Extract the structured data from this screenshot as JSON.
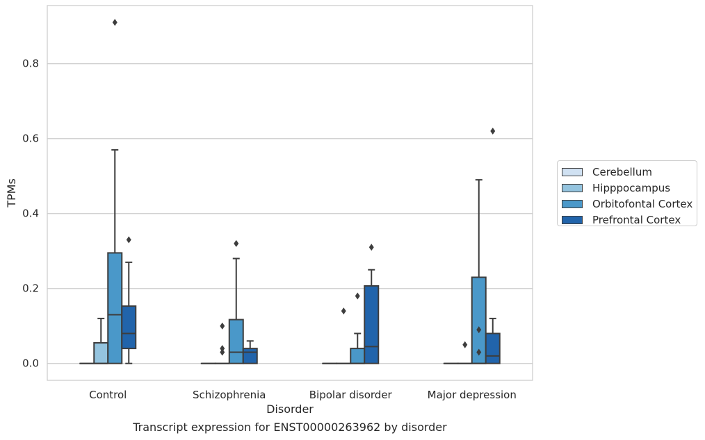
{
  "chart_data": {
    "type": "box",
    "title": "",
    "caption": "Transcript expression for ENST00000263962 by disorder",
    "xlabel": "Disorder",
    "ylabel": "TPMs",
    "ylim": [
      -0.045,
      0.955
    ],
    "yticks": [
      "0.0",
      "0.2",
      "0.4",
      "0.6",
      "0.8"
    ],
    "grid": "horizontal",
    "legend_position": "right",
    "categories": [
      "Control",
      "Schizophrenia",
      "Bipolar disorder",
      "Major depression"
    ],
    "series": [
      {
        "name": "Cerebellum",
        "color": "#d0e1f2",
        "boxes": [
          {
            "min": 0,
            "q1": 0,
            "median": 0,
            "q3": 0,
            "max": 0,
            "outliers": []
          },
          {
            "min": 0,
            "q1": 0,
            "median": 0,
            "q3": 0,
            "max": 0,
            "outliers": []
          },
          {
            "min": 0,
            "q1": 0,
            "median": 0,
            "q3": 0,
            "max": 0,
            "outliers": []
          },
          {
            "min": 0,
            "q1": 0,
            "median": 0,
            "q3": 0,
            "max": 0,
            "outliers": []
          }
        ]
      },
      {
        "name": "Hipppocampus",
        "color": "#94c4df",
        "boxes": [
          {
            "min": 0,
            "q1": 0,
            "median": 0,
            "q3": 0.055,
            "max": 0.12,
            "outliers": []
          },
          {
            "min": 0,
            "q1": 0,
            "median": 0,
            "q3": 0,
            "max": 0,
            "outliers": [
              0.1,
              0.04,
              0.03
            ]
          },
          {
            "min": 0,
            "q1": 0,
            "median": 0,
            "q3": 0,
            "max": 0,
            "outliers": [
              0.14
            ]
          },
          {
            "min": 0,
            "q1": 0,
            "median": 0,
            "q3": 0,
            "max": 0,
            "outliers": [
              0.05
            ]
          }
        ]
      },
      {
        "name": "Orbitofontal Cortex",
        "color": "#4a98c9",
        "boxes": [
          {
            "min": 0,
            "q1": 0,
            "median": 0.13,
            "q3": 0.295,
            "max": 0.57,
            "outliers": [
              0.91
            ]
          },
          {
            "min": 0,
            "q1": 0,
            "median": 0.03,
            "q3": 0.117,
            "max": 0.28,
            "outliers": [
              0.32
            ]
          },
          {
            "min": 0,
            "q1": 0,
            "median": 0,
            "q3": 0.04,
            "max": 0.08,
            "outliers": [
              0.18
            ]
          },
          {
            "min": 0,
            "q1": 0,
            "median": 0,
            "q3": 0.23,
            "max": 0.49,
            "outliers": [
              0.09,
              0.03
            ]
          }
        ]
      },
      {
        "name": "Prefrontal Cortex",
        "color": "#2164ab",
        "boxes": [
          {
            "min": 0,
            "q1": 0.04,
            "median": 0.08,
            "q3": 0.153,
            "max": 0.27,
            "outliers": [
              0.33
            ]
          },
          {
            "min": 0,
            "q1": 0,
            "median": 0.03,
            "q3": 0.04,
            "max": 0.06,
            "outliers": []
          },
          {
            "min": 0,
            "q1": 0,
            "median": 0.045,
            "q3": 0.207,
            "max": 0.25,
            "outliers": [
              0.31
            ]
          },
          {
            "min": 0,
            "q1": 0,
            "median": 0.02,
            "q3": 0.08,
            "max": 0.12,
            "outliers": [
              0.62
            ]
          }
        ]
      }
    ]
  }
}
